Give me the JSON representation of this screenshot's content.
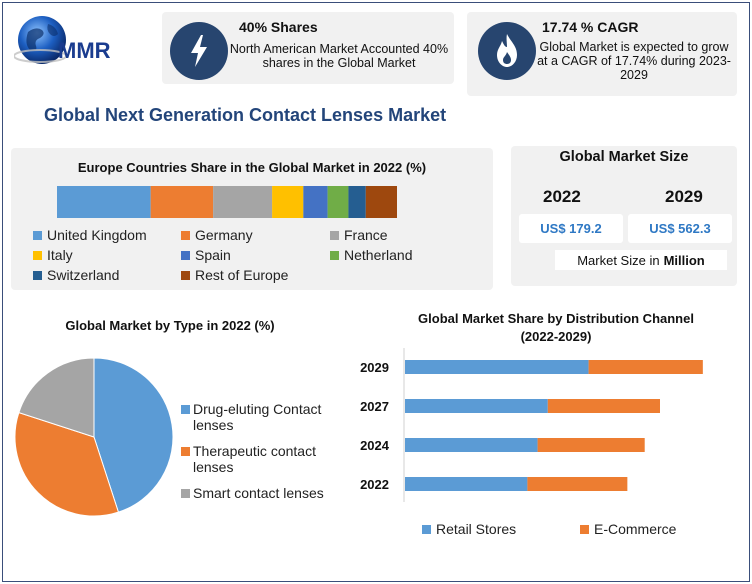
{
  "brand": {
    "name": "MMR"
  },
  "stat1": {
    "title": "40% Shares",
    "text": "North American Market Accounted 40% shares in the Global Market",
    "icon": "lightning-icon"
  },
  "stat2": {
    "title": "17.74 % CAGR",
    "text": "Global Market is expected to grow at a CAGR of 17.74% during 2023-2029",
    "icon": "flame-icon"
  },
  "main_title": "Global Next Generation Contact Lenses Market",
  "market_size": {
    "title": "Global Market Size",
    "year1": "2022",
    "year2": "2029",
    "value1": "US$ 179.2",
    "value2": "US$ 562.3",
    "footer_prefix": "Market Size in",
    "footer_unit": "Million"
  },
  "colors": {
    "navy": "#27456f",
    "title_blue": "#23457a",
    "value_blue": "#2e78c4"
  },
  "chart_data": [
    {
      "type": "bar",
      "orientation": "horizontal-stacked",
      "title": "Europe Countries Share in the Global Market in 2022 (%)",
      "series": [
        {
          "name": "United Kingdom",
          "value": 27,
          "color": "#5b9bd5"
        },
        {
          "name": "Germany",
          "value": 18,
          "color": "#ed7d31"
        },
        {
          "name": "France",
          "value": 17,
          "color": "#a5a5a5"
        },
        {
          "name": "Italy",
          "value": 9,
          "color": "#ffc000"
        },
        {
          "name": "Spain",
          "value": 7,
          "color": "#4472c4"
        },
        {
          "name": "Netherland",
          "value": 6,
          "color": "#70ad47"
        },
        {
          "name": "Switzerland",
          "value": 5,
          "color": "#255e91"
        },
        {
          "name": "Rest of Europe",
          "value": 9,
          "color": "#9e480e"
        }
      ]
    },
    {
      "type": "pie",
      "title": "Global Market by Type in 2022 (%)",
      "slices": [
        {
          "name": "Drug-eluting Contact lenses",
          "value": 45,
          "color": "#5b9bd5"
        },
        {
          "name": "Therapeutic contact lenses",
          "value": 35,
          "color": "#ed7d31"
        },
        {
          "name": "Smart contact lenses",
          "value": 20,
          "color": "#a5a5a5"
        }
      ]
    },
    {
      "type": "bar",
      "orientation": "horizontal-stacked",
      "title": "Global Market Share by Distribution Channel",
      "subtitle": "(2022-2029)",
      "categories": [
        "2029",
        "2027",
        "2024",
        "2022"
      ],
      "series": [
        {
          "name": "Retail Stores",
          "color": "#5b9bd5",
          "values": [
            180,
            140,
            130,
            120
          ]
        },
        {
          "name": "E-Commerce",
          "color": "#ed7d31",
          "values": [
            112,
            110,
            105,
            98
          ]
        }
      ],
      "xlim": [
        0,
        300
      ]
    }
  ]
}
